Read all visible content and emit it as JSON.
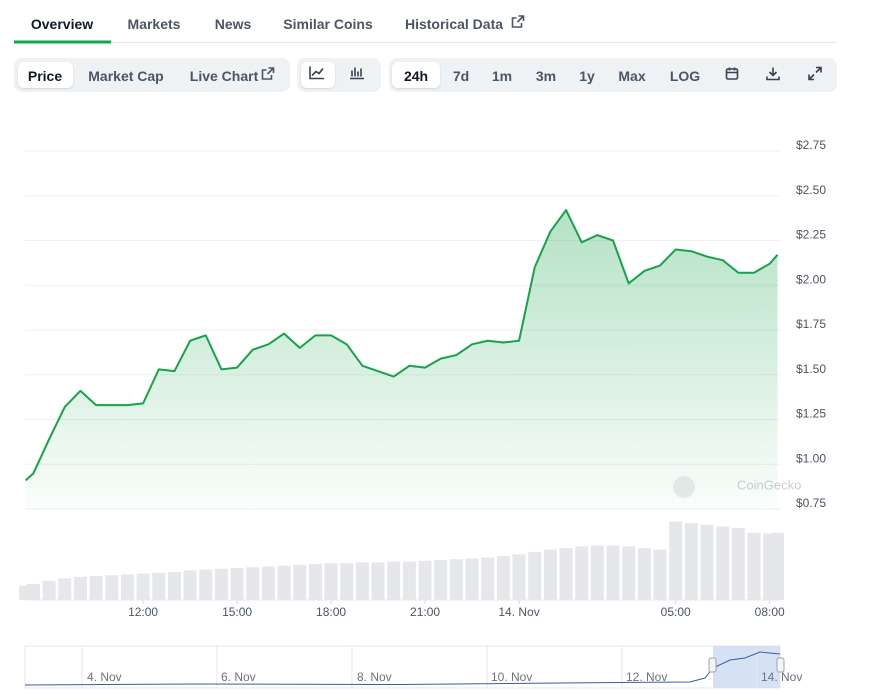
{
  "tabs": [
    "Overview",
    "Markets",
    "News",
    "Similar Coins",
    "Historical Data"
  ],
  "active_tab": 0,
  "toolbar": {
    "chart_kinds": [
      "Price",
      "Market Cap",
      "Live Chart"
    ],
    "active_kind": 0,
    "ranges": [
      "24h",
      "7d",
      "1m",
      "3m",
      "1y",
      "Max",
      "LOG"
    ],
    "active_range": 0
  },
  "chart_data": {
    "type": "line",
    "watermark": "CoinGecko",
    "color": "#16a34a",
    "x": [
      8.25,
      8.5,
      9,
      9.5,
      10,
      10.5,
      11,
      11.5,
      12,
      12.5,
      13,
      13.5,
      14,
      14.5,
      15,
      15.5,
      16,
      16.5,
      17,
      17.5,
      18,
      18.5,
      19,
      19.5,
      20,
      20.5,
      21,
      21.5,
      22,
      22.5,
      23,
      23.5,
      24,
      24.5,
      25,
      25.5,
      26,
      26.5,
      27,
      27.5,
      28,
      28.5,
      29,
      29.5,
      30,
      30.5,
      31,
      31.5,
      32,
      32.25
    ],
    "values": [
      0.91,
      0.95,
      1.14,
      1.32,
      1.41,
      1.33,
      1.33,
      1.33,
      1.34,
      1.53,
      1.52,
      1.69,
      1.72,
      1.53,
      1.54,
      1.64,
      1.67,
      1.73,
      1.65,
      1.72,
      1.72,
      1.67,
      1.55,
      1.52,
      1.49,
      1.55,
      1.54,
      1.59,
      1.61,
      1.67,
      1.69,
      1.68,
      1.69,
      2.1,
      2.3,
      2.42,
      2.24,
      2.28,
      2.25,
      2.01,
      2.08,
      2.11,
      2.2,
      2.19,
      2.16,
      2.14,
      2.07,
      2.07,
      2.12,
      2.17
    ],
    "xlim": [
      8.23,
      32.33
    ],
    "ylim": [
      0.75,
      2.75
    ],
    "xticks": [
      {
        "value": 12,
        "label": "12:00"
      },
      {
        "value": 15,
        "label": "15:00"
      },
      {
        "value": 18,
        "label": "18:00"
      },
      {
        "value": 21,
        "label": "21:00"
      },
      {
        "value": 24,
        "label": "14. Nov"
      },
      {
        "value": 29,
        "label": "05:00"
      },
      {
        "value": 32,
        "label": "08:00"
      }
    ],
    "yticks": [
      {
        "value": 0.75,
        "label": "$0.75"
      },
      {
        "value": 1,
        "label": "$1.00"
      },
      {
        "value": 1.25,
        "label": "$1.25"
      },
      {
        "value": 1.5,
        "label": "$1.50"
      },
      {
        "value": 1.75,
        "label": "$1.75"
      },
      {
        "value": 2,
        "label": "$2.00"
      },
      {
        "value": 2.25,
        "label": "$2.25"
      },
      {
        "value": 2.5,
        "label": "$2.50"
      },
      {
        "value": 2.75,
        "label": "$2.75"
      }
    ],
    "grid": true,
    "volume": {
      "color": "#e5e7eb",
      "ylim": [
        0,
        100
      ],
      "values": [
        18,
        20,
        24,
        27,
        29,
        30,
        31,
        32,
        33,
        34,
        35,
        37,
        38,
        39,
        40,
        41,
        42,
        43,
        44,
        45,
        46,
        46,
        47,
        47,
        48,
        48,
        49,
        50,
        51,
        52,
        53,
        55,
        57,
        60,
        63,
        65,
        67,
        68,
        68,
        67,
        65,
        63,
        98,
        96,
        94,
        92,
        90,
        84,
        83,
        84
      ]
    },
    "navigator": {
      "labels": [
        "4. Nov",
        "6. Nov",
        "8. Nov",
        "10. Nov",
        "12. Nov",
        "14. Nov"
      ]
    }
  }
}
